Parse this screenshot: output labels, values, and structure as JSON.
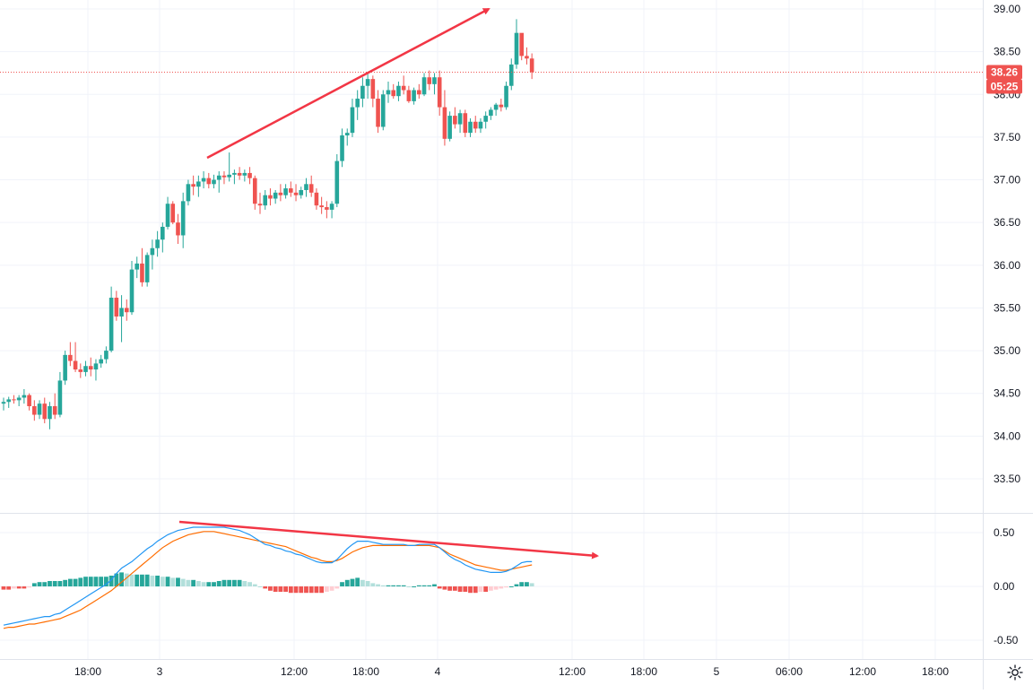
{
  "colors": {
    "up": "#26a69a",
    "down": "#ef5350",
    "macd_line": "#2196f3",
    "signal_line": "#ff6d00",
    "hist_up_strong": "#26a69a",
    "hist_up_weak": "#b2dfdb",
    "hist_down_strong": "#ef5350",
    "hist_down_weak": "#ffcdd2",
    "grid": "#f0f3fa",
    "annotation": "#f23645",
    "axis_text": "#131722"
  },
  "toolbar": {
    "settings_icon": "gear-icon"
  },
  "price_axis": {
    "labels": [
      "39.00",
      "38.50",
      "38.00",
      "37.50",
      "37.00",
      "36.50",
      "36.00",
      "35.50",
      "35.00",
      "34.50",
      "34.00",
      "33.50"
    ],
    "last_price_label": "38.26",
    "countdown_label": "05:25"
  },
  "macd_axis": {
    "labels": [
      "0.50",
      "0.00",
      "-0.50"
    ]
  },
  "time_axis": {
    "labels": [
      "18:00",
      "3",
      "12:00",
      "18:00",
      "4",
      "12:00",
      "18:00",
      "5",
      "06:00",
      "12:00",
      "18:00"
    ]
  },
  "chart_data": [
    {
      "type": "candlestick",
      "ylim": [
        33.2,
        39.1
      ],
      "last_price": 38.26,
      "x_ticks": [
        "18:00",
        "3",
        "12:00",
        "18:00",
        "4",
        "12:00",
        "18:00",
        "5",
        "06:00",
        "12:00",
        "18:00"
      ],
      "candles": [
        [
          34.38,
          34.45,
          34.3,
          34.4
        ],
        [
          34.4,
          34.46,
          34.33,
          34.43
        ],
        [
          34.43,
          34.48,
          34.38,
          34.42
        ],
        [
          34.42,
          34.48,
          34.35,
          34.45
        ],
        [
          34.45,
          34.55,
          34.38,
          34.48
        ],
        [
          34.48,
          34.5,
          34.3,
          34.35
        ],
        [
          34.35,
          34.42,
          34.18,
          34.25
        ],
        [
          34.25,
          34.42,
          34.2,
          34.38
        ],
        [
          34.38,
          34.45,
          34.15,
          34.2
        ],
        [
          34.2,
          34.4,
          34.08,
          34.35
        ],
        [
          34.35,
          34.5,
          34.2,
          34.25
        ],
        [
          34.25,
          34.75,
          34.22,
          34.65
        ],
        [
          34.65,
          35.0,
          34.6,
          34.95
        ],
        [
          34.95,
          35.1,
          34.82,
          34.88
        ],
        [
          34.88,
          35.1,
          34.75,
          34.78
        ],
        [
          34.78,
          34.85,
          34.68,
          34.75
        ],
        [
          34.75,
          34.88,
          34.7,
          34.82
        ],
        [
          34.82,
          34.92,
          34.7,
          34.78
        ],
        [
          34.78,
          34.9,
          34.65,
          34.85
        ],
        [
          34.85,
          34.95,
          34.8,
          34.9
        ],
        [
          34.9,
          35.05,
          34.85,
          35.0
        ],
        [
          35.0,
          35.75,
          34.98,
          35.62
        ],
        [
          35.62,
          35.7,
          35.35,
          35.4
        ],
        [
          35.4,
          35.65,
          35.1,
          35.5
        ],
        [
          35.5,
          35.6,
          35.35,
          35.45
        ],
        [
          35.45,
          36.05,
          35.42,
          35.95
        ],
        [
          35.95,
          36.1,
          35.85,
          36.02
        ],
        [
          36.02,
          36.2,
          35.75,
          35.8
        ],
        [
          35.8,
          36.15,
          35.75,
          36.12
        ],
        [
          36.12,
          36.3,
          35.95,
          36.2
        ],
        [
          36.2,
          36.4,
          36.1,
          36.3
        ],
        [
          36.3,
          36.5,
          36.15,
          36.45
        ],
        [
          36.45,
          36.8,
          36.42,
          36.72
        ],
        [
          36.72,
          36.75,
          36.48,
          36.5
        ],
        [
          36.5,
          36.6,
          36.25,
          36.35
        ],
        [
          36.35,
          36.85,
          36.2,
          36.75
        ],
        [
          36.75,
          37.0,
          36.7,
          36.95
        ],
        [
          36.95,
          37.05,
          36.82,
          36.92
        ],
        [
          36.92,
          37.05,
          36.8,
          36.98
        ],
        [
          36.98,
          37.1,
          36.9,
          37.02
        ],
        [
          37.02,
          37.08,
          36.9,
          36.95
        ],
        [
          36.95,
          37.06,
          36.9,
          37.0
        ],
        [
          37.0,
          37.1,
          36.85,
          37.05
        ],
        [
          37.05,
          37.1,
          36.95,
          37.03
        ],
        [
          37.03,
          37.32,
          36.98,
          37.06
        ],
        [
          37.06,
          37.12,
          36.95,
          37.08
        ],
        [
          37.08,
          37.15,
          37.0,
          37.05
        ],
        [
          37.05,
          37.12,
          36.98,
          37.08
        ],
        [
          37.08,
          37.15,
          36.95,
          37.02
        ],
        [
          37.02,
          37.05,
          36.65,
          36.72
        ],
        [
          36.72,
          36.85,
          36.6,
          36.7
        ],
        [
          36.7,
          36.88,
          36.65,
          36.82
        ],
        [
          36.82,
          36.9,
          36.7,
          36.78
        ],
        [
          36.78,
          36.88,
          36.72,
          36.85
        ],
        [
          36.85,
          36.95,
          36.75,
          36.82
        ],
        [
          36.82,
          36.95,
          36.78,
          36.9
        ],
        [
          36.9,
          36.98,
          36.8,
          36.85
        ],
        [
          36.85,
          36.95,
          36.75,
          36.82
        ],
        [
          36.82,
          36.92,
          36.78,
          36.88
        ],
        [
          36.88,
          37.02,
          36.8,
          36.95
        ],
        [
          36.95,
          37.05,
          36.8,
          36.85
        ],
        [
          36.85,
          36.9,
          36.65,
          36.7
        ],
        [
          36.7,
          36.8,
          36.6,
          36.68
        ],
        [
          36.68,
          36.75,
          36.55,
          36.65
        ],
        [
          36.65,
          36.75,
          36.55,
          36.72
        ],
        [
          36.72,
          37.3,
          36.68,
          37.22
        ],
        [
          37.22,
          37.6,
          37.15,
          37.52
        ],
        [
          37.52,
          37.6,
          37.4,
          37.55
        ],
        [
          37.55,
          37.95,
          37.5,
          37.85
        ],
        [
          37.85,
          38.05,
          37.7,
          37.95
        ],
        [
          37.95,
          38.2,
          37.85,
          38.1
        ],
        [
          38.1,
          38.25,
          37.95,
          38.18
        ],
        [
          38.18,
          38.22,
          37.85,
          37.95
        ],
        [
          37.95,
          38.05,
          37.55,
          37.62
        ],
        [
          37.62,
          38.05,
          37.58,
          38.0
        ],
        [
          38.0,
          38.15,
          37.9,
          38.05
        ],
        [
          38.05,
          38.12,
          37.95,
          37.98
        ],
        [
          37.98,
          38.15,
          37.92,
          38.1
        ],
        [
          38.1,
          38.22,
          38.0,
          38.05
        ],
        [
          38.05,
          38.1,
          37.9,
          37.92
        ],
        [
          37.92,
          38.08,
          37.88,
          38.05
        ],
        [
          38.05,
          38.12,
          37.95,
          38.0
        ],
        [
          38.0,
          38.25,
          37.98,
          38.2
        ],
        [
          38.2,
          38.28,
          38.05,
          38.12
        ],
        [
          38.12,
          38.25,
          38.0,
          38.2
        ],
        [
          38.2,
          38.28,
          37.75,
          37.85
        ],
        [
          37.85,
          38.05,
          37.4,
          37.48
        ],
        [
          37.48,
          37.8,
          37.45,
          37.75
        ],
        [
          37.75,
          37.85,
          37.6,
          37.65
        ],
        [
          37.65,
          37.82,
          37.55,
          37.78
        ],
        [
          37.78,
          37.82,
          37.5,
          37.55
        ],
        [
          37.55,
          37.72,
          37.5,
          37.68
        ],
        [
          37.68,
          37.75,
          37.55,
          37.6
        ],
        [
          37.6,
          37.72,
          37.55,
          37.68
        ],
        [
          37.68,
          37.8,
          37.6,
          37.75
        ],
        [
          37.75,
          37.85,
          37.7,
          37.82
        ],
        [
          37.82,
          37.9,
          37.75,
          37.88
        ],
        [
          37.88,
          37.95,
          37.8,
          37.85
        ],
        [
          37.85,
          38.15,
          37.82,
          38.1
        ],
        [
          38.1,
          38.42,
          38.05,
          38.35
        ],
        [
          38.35,
          38.88,
          38.3,
          38.72
        ],
        [
          38.72,
          38.7,
          38.4,
          38.45
        ],
        [
          38.45,
          38.55,
          38.35,
          38.42
        ],
        [
          38.42,
          38.48,
          38.18,
          38.26
        ]
      ],
      "annotation": "trend-arrow-up"
    },
    {
      "type": "macd",
      "ylim": [
        -0.72,
        0.72
      ],
      "macd": [
        -0.36,
        -0.35,
        -0.34,
        -0.33,
        -0.32,
        -0.31,
        -0.3,
        -0.29,
        -0.28,
        -0.28,
        -0.26,
        -0.25,
        -0.22,
        -0.19,
        -0.16,
        -0.13,
        -0.1,
        -0.07,
        -0.04,
        -0.01,
        0.02,
        0.06,
        0.12,
        0.17,
        0.2,
        0.23,
        0.27,
        0.31,
        0.35,
        0.38,
        0.42,
        0.45,
        0.48,
        0.5,
        0.52,
        0.53,
        0.54,
        0.55,
        0.55,
        0.55,
        0.55,
        0.55,
        0.55,
        0.55,
        0.54,
        0.53,
        0.52,
        0.5,
        0.48,
        0.45,
        0.42,
        0.39,
        0.38,
        0.36,
        0.35,
        0.33,
        0.32,
        0.3,
        0.29,
        0.27,
        0.25,
        0.23,
        0.22,
        0.22,
        0.22,
        0.25,
        0.3,
        0.35,
        0.39,
        0.42,
        0.42,
        0.42,
        0.41,
        0.4,
        0.39,
        0.39,
        0.39,
        0.39,
        0.39,
        0.38,
        0.38,
        0.39,
        0.39,
        0.39,
        0.39,
        0.36,
        0.32,
        0.28,
        0.25,
        0.23,
        0.2,
        0.18,
        0.16,
        0.15,
        0.14,
        0.13,
        0.13,
        0.13,
        0.14,
        0.16,
        0.19,
        0.22,
        0.23,
        0.23
      ],
      "signal": [
        -0.39,
        -0.38,
        -0.38,
        -0.37,
        -0.36,
        -0.35,
        -0.35,
        -0.34,
        -0.33,
        -0.32,
        -0.31,
        -0.3,
        -0.28,
        -0.26,
        -0.24,
        -0.22,
        -0.19,
        -0.16,
        -0.13,
        -0.1,
        -0.07,
        -0.04,
        0.0,
        0.04,
        0.08,
        0.12,
        0.16,
        0.2,
        0.24,
        0.28,
        0.32,
        0.36,
        0.39,
        0.42,
        0.44,
        0.46,
        0.48,
        0.49,
        0.5,
        0.51,
        0.51,
        0.51,
        0.5,
        0.49,
        0.48,
        0.47,
        0.46,
        0.45,
        0.44,
        0.43,
        0.42,
        0.41,
        0.4,
        0.39,
        0.38,
        0.37,
        0.35,
        0.33,
        0.31,
        0.29,
        0.27,
        0.26,
        0.24,
        0.23,
        0.23,
        0.24,
        0.26,
        0.29,
        0.32,
        0.34,
        0.36,
        0.37,
        0.38,
        0.38,
        0.38,
        0.38,
        0.38,
        0.38,
        0.38,
        0.38,
        0.38,
        0.38,
        0.38,
        0.38,
        0.37,
        0.36,
        0.33,
        0.3,
        0.28,
        0.26,
        0.24,
        0.22,
        0.2,
        0.19,
        0.18,
        0.17,
        0.16,
        0.15,
        0.15,
        0.16,
        0.17,
        0.18,
        0.19,
        0.2
      ],
      "histogram": [
        -0.03,
        -0.03,
        -0.02,
        -0.02,
        -0.02,
        -0.01,
        0.03,
        0.04,
        0.04,
        0.05,
        0.05,
        0.05,
        0.06,
        0.07,
        0.07,
        0.08,
        0.09,
        0.09,
        0.09,
        0.09,
        0.09,
        0.1,
        0.12,
        0.13,
        0.12,
        0.11,
        0.11,
        0.11,
        0.11,
        0.1,
        0.1,
        0.09,
        0.09,
        0.08,
        0.08,
        0.07,
        0.06,
        0.06,
        0.05,
        0.04,
        0.04,
        0.04,
        0.05,
        0.06,
        0.06,
        0.06,
        0.06,
        0.05,
        0.04,
        0.02,
        0.0,
        -0.02,
        -0.04,
        -0.05,
        -0.05,
        -0.05,
        -0.06,
        -0.06,
        -0.06,
        -0.06,
        -0.06,
        -0.06,
        -0.06,
        -0.05,
        -0.04,
        -0.02,
        0.04,
        0.06,
        0.07,
        0.08,
        0.06,
        0.05,
        0.03,
        0.02,
        0.01,
        0.01,
        0.01,
        0.01,
        0.01,
        0.0,
        0.0,
        0.01,
        0.01,
        0.01,
        0.02,
        -0.02,
        -0.03,
        -0.04,
        -0.04,
        -0.05,
        -0.05,
        -0.06,
        -0.06,
        -0.05,
        -0.05,
        -0.04,
        -0.03,
        -0.02,
        -0.01,
        0.0,
        0.02,
        0.04,
        0.04,
        0.03
      ],
      "annotation": "trend-arrow-down"
    }
  ]
}
